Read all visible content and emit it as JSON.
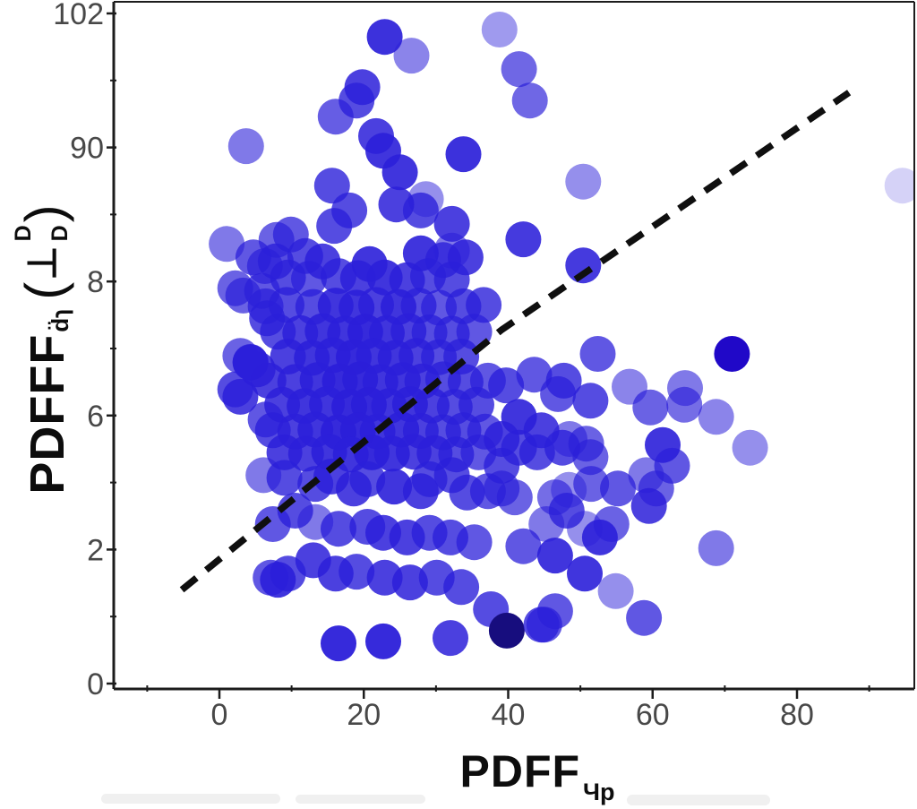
{
  "figure": {
    "background": "#ffffff"
  },
  "labels": {
    "x_main": "PDFF",
    "x_sub": "Чp",
    "y_main": "PDFFF",
    "y_sub": "d̈ɿ",
    "y_paren_open": "(",
    "y_perp": "⊥",
    "y_stack_top": "D",
    "y_stack_bottom": "D",
    "y_paren_close": ")"
  },
  "colors": {
    "dot_base": "#2b1fd9",
    "navy": "#170d7e",
    "strong": "#2008c8",
    "axis": "#1c1c1c",
    "tick_label": "#484848",
    "trend": "#0f0f0f"
  },
  "axes": {
    "x": {
      "major": [
        {
          "value": 0,
          "label": "0"
        },
        {
          "value": 20,
          "label": "20"
        },
        {
          "value": 40,
          "label": "40"
        },
        {
          "value": 60,
          "label": "60"
        },
        {
          "value": 80,
          "label": "80"
        }
      ],
      "minor": [
        -10,
        10,
        30,
        50,
        70,
        90
      ]
    },
    "y": {
      "major": [
        {
          "value": 100,
          "label": "102"
        },
        {
          "value": 80,
          "label": "90"
        },
        {
          "value": 60,
          "label": "8"
        },
        {
          "value": 40,
          "label": "6"
        },
        {
          "value": 20,
          "label": "2"
        },
        {
          "value": 0,
          "label": "0"
        }
      ],
      "minor": [
        10,
        30,
        50,
        70,
        90
      ]
    }
  },
  "chart_data": {
    "type": "scatter",
    "title": "",
    "xlabel": "PDFF_Чp",
    "ylabel": "PDFFF_d̈ɿ (⊥ D/D)",
    "xlim": [
      -14.6,
      96.3
    ],
    "ylim": [
      -0.8,
      101.8
    ],
    "grid": false,
    "legend": null,
    "marker": {
      "shape": "circle",
      "radius_px": 20
    },
    "points_format": "[x, y, opacity, optional_color_key]",
    "points": [
      [
        22.9,
        96.5,
        0.92
      ],
      [
        26.6,
        93.7,
        0.55
      ],
      [
        38.8,
        97.6,
        0.45
      ],
      [
        41.5,
        91.7,
        0.68
      ],
      [
        43.0,
        87.0,
        0.68
      ],
      [
        50.4,
        74.9,
        0.5
      ],
      [
        42.1,
        66.3,
        0.88
      ],
      [
        50.4,
        62.4,
        0.88
      ],
      [
        94.6,
        74.3,
        0.2
      ],
      [
        3.7,
        80.2,
        0.6
      ],
      [
        1.0,
        65.6,
        0.6
      ],
      [
        19.8,
        89.0,
        0.85
      ],
      [
        19.0,
        87.0,
        0.8
      ],
      [
        16.1,
        84.6,
        0.72
      ],
      [
        21.7,
        81.7,
        0.85
      ],
      [
        22.7,
        79.5,
        0.9
      ],
      [
        33.8,
        79.0,
        0.92
      ],
      [
        25.0,
        76.3,
        0.9
      ],
      [
        15.6,
        74.3,
        0.8
      ],
      [
        28.6,
        72.3,
        0.5
      ],
      [
        24.5,
        71.5,
        0.85
      ],
      [
        27.9,
        70.6,
        0.8
      ],
      [
        32.2,
        68.6,
        0.85
      ],
      [
        15.9,
        68.3,
        0.8
      ],
      [
        9.9,
        67.0,
        0.75
      ],
      [
        18.0,
        70.6,
        0.8
      ],
      [
        7.9,
        66.2,
        0.7
      ],
      [
        6.3,
        62.3,
        0.7
      ],
      [
        11.9,
        63.8,
        0.8
      ],
      [
        14.3,
        63.0,
        0.85
      ],
      [
        20.8,
        62.6,
        0.9
      ],
      [
        32.2,
        64.6,
        0.6
      ],
      [
        27.9,
        64.2,
        0.9
      ],
      [
        31.0,
        63.2,
        0.8
      ],
      [
        34.1,
        63.6,
        0.85
      ],
      [
        4.7,
        63.6,
        0.75
      ],
      [
        7.8,
        63.0,
        0.8
      ],
      [
        9.5,
        60.6,
        0.8
      ],
      [
        12.4,
        60.4,
        0.75
      ],
      [
        16.5,
        60.8,
        0.8
      ],
      [
        19.2,
        60.5,
        0.85
      ],
      [
        22.9,
        60.6,
        0.9
      ],
      [
        26.0,
        60.2,
        0.85
      ],
      [
        28.9,
        60.8,
        0.8
      ],
      [
        32.2,
        60.3,
        0.8
      ],
      [
        2.2,
        59.0,
        0.7
      ],
      [
        5.9,
        58.6,
        0.75
      ],
      [
        3.3,
        57.9,
        0.7
      ],
      [
        6.4,
        56.3,
        0.75
      ],
      [
        9.3,
        56.5,
        0.8
      ],
      [
        13.0,
        56.2,
        0.8
      ],
      [
        16.1,
        56.4,
        0.9
      ],
      [
        19.0,
        56.1,
        0.9
      ],
      [
        21.7,
        56.5,
        0.85
      ],
      [
        24.8,
        56.2,
        0.9
      ],
      [
        27.6,
        56.4,
        0.8
      ],
      [
        30.4,
        56.1,
        0.75
      ],
      [
        33.8,
        56.3,
        0.8
      ],
      [
        36.6,
        56.5,
        0.8
      ],
      [
        6.6,
        54.5,
        0.8
      ],
      [
        8.1,
        52.5,
        0.8
      ],
      [
        11.2,
        52.3,
        0.85
      ],
      [
        14.3,
        52.6,
        0.9
      ],
      [
        17.4,
        52.2,
        0.9
      ],
      [
        20.2,
        52.5,
        0.95
      ],
      [
        23.2,
        52.3,
        0.9
      ],
      [
        26.2,
        52.6,
        0.85
      ],
      [
        29.1,
        52.4,
        0.8
      ],
      [
        32.2,
        52.2,
        0.8
      ],
      [
        35.3,
        52.5,
        0.75
      ],
      [
        4.3,
        48.0,
        0.9
      ],
      [
        9.5,
        48.8,
        0.85
      ],
      [
        12.8,
        48.6,
        0.9
      ],
      [
        15.7,
        49.0,
        0.9
      ],
      [
        18.6,
        48.7,
        0.95
      ],
      [
        21.4,
        48.9,
        0.9
      ],
      [
        24.4,
        48.6,
        0.9
      ],
      [
        27.3,
        48.9,
        0.85
      ],
      [
        30.4,
        48.7,
        0.8
      ],
      [
        33.5,
        48.8,
        0.8
      ],
      [
        5.3,
        46.9,
        0.85
      ],
      [
        2.9,
        48.9,
        0.7
      ],
      [
        2.2,
        43.9,
        0.8
      ],
      [
        4.3,
        47.9,
        0.9
      ],
      [
        6.8,
        45.2,
        0.85
      ],
      [
        10.5,
        45.0,
        0.85
      ],
      [
        13.6,
        45.3,
        0.9
      ],
      [
        16.7,
        45.1,
        0.95
      ],
      [
        19.5,
        45.4,
        0.95
      ],
      [
        22.3,
        45.0,
        0.9
      ],
      [
        25.4,
        45.3,
        0.9
      ],
      [
        28.1,
        45.1,
        0.85
      ],
      [
        31.0,
        45.4,
        0.8
      ],
      [
        34.1,
        45.0,
        0.8
      ],
      [
        37.2,
        45.2,
        0.75
      ],
      [
        2.9,
        42.8,
        0.85
      ],
      [
        8.7,
        41.6,
        0.85
      ],
      [
        11.8,
        41.4,
        0.9
      ],
      [
        14.9,
        41.7,
        0.9
      ],
      [
        18.0,
        41.3,
        0.95
      ],
      [
        20.7,
        41.6,
        0.95
      ],
      [
        23.5,
        41.4,
        0.9
      ],
      [
        26.4,
        41.7,
        0.9
      ],
      [
        29.4,
        41.5,
        0.85
      ],
      [
        32.6,
        41.3,
        0.8
      ],
      [
        35.6,
        41.6,
        0.8
      ],
      [
        6.4,
        39.4,
        0.75
      ],
      [
        7.4,
        37.8,
        0.8
      ],
      [
        10.5,
        37.6,
        0.85
      ],
      [
        13.3,
        37.9,
        0.9
      ],
      [
        16.5,
        37.5,
        0.95
      ],
      [
        19.2,
        37.8,
        0.95
      ],
      [
        21.9,
        37.6,
        0.9
      ],
      [
        25.2,
        37.9,
        0.9
      ],
      [
        27.9,
        37.7,
        0.85
      ],
      [
        31.0,
        37.5,
        0.8
      ],
      [
        33.8,
        37.8,
        0.8
      ],
      [
        36.8,
        37.6,
        0.75
      ],
      [
        9.0,
        34.5,
        0.85
      ],
      [
        12.0,
        34.3,
        0.85
      ],
      [
        15.2,
        34.6,
        0.9
      ],
      [
        18.2,
        34.2,
        0.9
      ],
      [
        21.1,
        34.5,
        0.95
      ],
      [
        23.9,
        34.3,
        0.9
      ],
      [
        26.9,
        34.6,
        0.85
      ],
      [
        29.8,
        34.4,
        0.85
      ],
      [
        32.8,
        34.2,
        0.8
      ],
      [
        35.9,
        34.5,
        0.75
      ],
      [
        6.1,
        31.1,
        0.6
      ],
      [
        52.4,
        49.2,
        0.75
      ],
      [
        71.0,
        49.2,
        1.0,
        "strong"
      ],
      [
        43.6,
        46.1,
        0.75
      ],
      [
        47.7,
        45.2,
        0.8
      ],
      [
        39.7,
        44.5,
        0.8
      ],
      [
        46.9,
        43.2,
        0.75
      ],
      [
        56.8,
        44.3,
        0.55
      ],
      [
        51.4,
        42.2,
        0.8
      ],
      [
        59.7,
        41.2,
        0.7
      ],
      [
        64.4,
        41.6,
        0.65
      ],
      [
        64.5,
        44.1,
        0.6
      ],
      [
        68.8,
        39.8,
        0.55
      ],
      [
        61.4,
        35.6,
        0.9
      ],
      [
        62.7,
        32.5,
        0.75
      ],
      [
        59.1,
        31.1,
        0.6
      ],
      [
        60.5,
        29.1,
        0.7
      ],
      [
        59.5,
        26.5,
        0.85
      ],
      [
        73.5,
        35.2,
        0.5
      ],
      [
        68.8,
        20.2,
        0.6
      ],
      [
        41.5,
        39.8,
        0.9
      ],
      [
        44.6,
        37.8,
        0.85
      ],
      [
        48.5,
        36.5,
        0.6
      ],
      [
        50.8,
        35.8,
        0.7
      ],
      [
        47.5,
        35.2,
        0.8
      ],
      [
        39.1,
        36.5,
        0.85
      ],
      [
        44.0,
        34.5,
        0.8
      ],
      [
        51.4,
        33.8,
        0.7
      ],
      [
        39.1,
        32.5,
        0.8
      ],
      [
        41.5,
        35.2,
        0.8
      ],
      [
        9.0,
        30.7,
        0.8
      ],
      [
        13.3,
        29.8,
        0.8
      ],
      [
        15.5,
        30.9,
        0.85
      ],
      [
        18.6,
        29.1,
        0.85
      ],
      [
        20.5,
        30.5,
        0.8
      ],
      [
        24.2,
        29.4,
        0.9
      ],
      [
        27.9,
        28.7,
        0.85
      ],
      [
        29.1,
        30.5,
        0.8
      ],
      [
        32.2,
        31.1,
        0.8
      ],
      [
        34.3,
        28.5,
        0.8
      ],
      [
        37.2,
        28.7,
        0.75
      ],
      [
        39.1,
        29.1,
        0.7
      ],
      [
        40.9,
        27.8,
        0.7
      ],
      [
        46.5,
        27.8,
        0.65
      ],
      [
        48.4,
        28.9,
        0.5
      ],
      [
        51.5,
        29.8,
        0.7
      ],
      [
        55.2,
        29.1,
        0.75
      ],
      [
        48.1,
        25.8,
        0.8
      ],
      [
        45.3,
        23.8,
        0.6
      ],
      [
        54.3,
        23.8,
        0.7
      ],
      [
        50.6,
        23.1,
        0.5
      ],
      [
        10.5,
        25.8,
        0.8
      ],
      [
        7.4,
        23.8,
        0.75
      ],
      [
        13.3,
        24.1,
        0.6
      ],
      [
        16.5,
        23.1,
        0.8
      ],
      [
        20.5,
        23.4,
        0.8
      ],
      [
        22.7,
        22.5,
        0.85
      ],
      [
        26.0,
        21.8,
        0.85
      ],
      [
        29.1,
        22.5,
        0.8
      ],
      [
        32.0,
        21.8,
        0.8
      ],
      [
        35.3,
        21.1,
        0.75
      ],
      [
        42.1,
        20.5,
        0.75
      ],
      [
        46.5,
        19.1,
        0.9
      ],
      [
        13.0,
        18.4,
        0.85
      ],
      [
        9.5,
        16.4,
        0.8
      ],
      [
        16.1,
        16.4,
        0.85
      ],
      [
        19.0,
        16.7,
        0.8
      ],
      [
        22.9,
        15.8,
        0.85
      ],
      [
        26.4,
        15.1,
        0.85
      ],
      [
        30.1,
        15.8,
        0.8
      ],
      [
        33.5,
        14.4,
        0.8
      ],
      [
        8.1,
        15.5,
        0.9
      ],
      [
        7.1,
        15.8,
        0.75
      ],
      [
        37.6,
        11.1,
        0.8
      ],
      [
        52.7,
        21.8,
        0.9
      ],
      [
        50.6,
        16.4,
        0.9
      ],
      [
        54.9,
        13.8,
        0.5
      ],
      [
        46.5,
        10.8,
        0.75
      ],
      [
        45.0,
        8.8,
        0.75
      ],
      [
        58.8,
        9.8,
        0.75
      ],
      [
        16.5,
        6.0,
        0.95
      ],
      [
        22.7,
        6.3,
        0.95
      ],
      [
        32.0,
        6.8,
        0.85
      ],
      [
        39.8,
        7.9,
        1.0,
        "navy"
      ],
      [
        44.6,
        8.8,
        0.8
      ]
    ],
    "trendline": {
      "style": "dashed",
      "color": "#0f0f0f",
      "points": [
        [
          -5.2,
          14.0
        ],
        [
          39.1,
          52.8
        ],
        [
          87.2,
          88.2
        ]
      ]
    }
  }
}
